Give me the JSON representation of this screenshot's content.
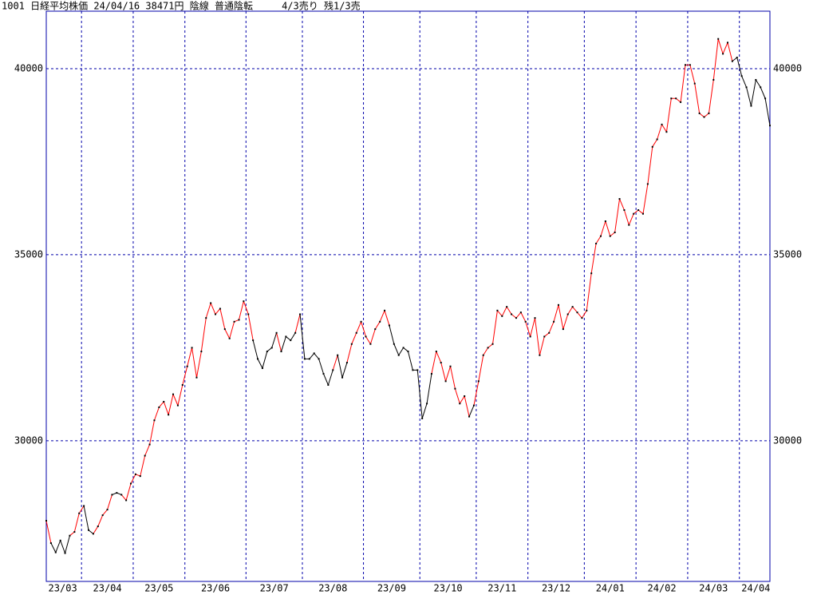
{
  "chart_data": {
    "type": "line",
    "title": "1001 日経平均株価 24/04/16 38471円 陰線 普通陰転     4/3売り 残1/3売",
    "x": [
      "23/03",
      "23/03",
      "23/03",
      "23/03",
      "23/03",
      "23/03",
      "23/03",
      "23/03",
      "23/04",
      "23/04",
      "23/04",
      "23/04",
      "23/04",
      "23/04",
      "23/04",
      "23/04",
      "23/04",
      "23/04",
      "23/04",
      "23/05",
      "23/05",
      "23/05",
      "23/05",
      "23/05",
      "23/05",
      "23/05",
      "23/05",
      "23/05",
      "23/05",
      "23/05",
      "23/06",
      "23/06",
      "23/06",
      "23/06",
      "23/06",
      "23/06",
      "23/06",
      "23/06",
      "23/06",
      "23/06",
      "23/06",
      "23/06",
      "23/06",
      "23/07",
      "23/07",
      "23/07",
      "23/07",
      "23/07",
      "23/07",
      "23/07",
      "23/07",
      "23/07",
      "23/07",
      "23/07",
      "23/07",
      "23/08",
      "23/08",
      "23/08",
      "23/08",
      "23/08",
      "23/08",
      "23/08",
      "23/08",
      "23/08",
      "23/08",
      "23/08",
      "23/08",
      "23/08",
      "23/09",
      "23/09",
      "23/09",
      "23/09",
      "23/09",
      "23/09",
      "23/09",
      "23/09",
      "23/09",
      "23/09",
      "23/09",
      "23/09",
      "23/10",
      "23/10",
      "23/10",
      "23/10",
      "23/10",
      "23/10",
      "23/10",
      "23/10",
      "23/10",
      "23/10",
      "23/10",
      "23/10",
      "23/11",
      "23/11",
      "23/11",
      "23/11",
      "23/11",
      "23/11",
      "23/11",
      "23/11",
      "23/11",
      "23/11",
      "23/11",
      "23/12",
      "23/12",
      "23/12",
      "23/12",
      "23/12",
      "23/12",
      "23/12",
      "23/12",
      "23/12",
      "23/12",
      "23/12",
      "23/12",
      "24/01",
      "24/01",
      "24/01",
      "24/01",
      "24/01",
      "24/01",
      "24/01",
      "24/01",
      "24/01",
      "24/01",
      "24/01",
      "24/02",
      "24/02",
      "24/02",
      "24/02",
      "24/02",
      "24/02",
      "24/02",
      "24/02",
      "24/02",
      "24/02",
      "24/02",
      "24/03",
      "24/03",
      "24/03",
      "24/03",
      "24/03",
      "24/03",
      "24/03",
      "24/03",
      "24/03",
      "24/03",
      "24/03",
      "24/04",
      "24/04",
      "24/04",
      "24/04",
      "24/04",
      "24/04",
      "24/04"
    ],
    "values": [
      27850,
      27250,
      27000,
      27320,
      26980,
      27450,
      27550,
      28050,
      28250,
      27600,
      27500,
      27700,
      28000,
      28150,
      28550,
      28600,
      28550,
      28400,
      28850,
      29100,
      29050,
      29600,
      29900,
      30550,
      30900,
      31050,
      30700,
      31250,
      30950,
      31500,
      32000,
      32500,
      31700,
      32400,
      33300,
      33700,
      33400,
      33550,
      33000,
      32750,
      33200,
      33250,
      33750,
      33400,
      32700,
      32200,
      31950,
      32400,
      32500,
      32900,
      32400,
      32800,
      32700,
      32900,
      33400,
      32200,
      32200,
      32350,
      32200,
      31800,
      31500,
      31900,
      32300,
      31700,
      32100,
      32600,
      32900,
      33200,
      32800,
      32600,
      33000,
      33200,
      33500,
      33100,
      32600,
      32300,
      32500,
      32400,
      31900,
      31900,
      30600,
      31000,
      31800,
      32400,
      32100,
      31600,
      32000,
      31400,
      31000,
      31200,
      30650,
      30950,
      31600,
      32300,
      32500,
      32600,
      33500,
      33350,
      33600,
      33400,
      33300,
      33450,
      33200,
      32800,
      33300,
      32300,
      32800,
      32900,
      33200,
      33650,
      33000,
      33400,
      33600,
      33450,
      33300,
      33500,
      34500,
      35300,
      35500,
      35900,
      35500,
      35600,
      36500,
      36200,
      35800,
      36100,
      36200,
      36100,
      36900,
      37900,
      38100,
      38500,
      38300,
      39200,
      39200,
      39100,
      40100,
      40100,
      39600,
      38800,
      38700,
      38800,
      39700,
      40800,
      40400,
      40700,
      40200,
      40300,
      39800,
      39500,
      39000,
      39700,
      39500,
      39200,
      38471
    ],
    "colors": [
      "#ff0000",
      "#ff0000",
      "#000000",
      "#000000",
      "#000000",
      "#000000",
      "#ff0000",
      "#ff0000",
      "#ff0000",
      "#000000",
      "#000000",
      "#ff0000",
      "#ff0000",
      "#ff0000",
      "#ff0000",
      "#000000",
      "#000000",
      "#ff0000",
      "#ff0000",
      "#ff0000",
      "#ff0000",
      "#ff0000",
      "#ff0000",
      "#ff0000",
      "#ff0000",
      "#ff0000",
      "#ff0000",
      "#ff0000",
      "#ff0000",
      "#ff0000",
      "#ff0000",
      "#ff0000",
      "#ff0000",
      "#ff0000",
      "#ff0000",
      "#ff0000",
      "#ff0000",
      "#ff0000",
      "#ff0000",
      "#ff0000",
      "#ff0000",
      "#ff0000",
      "#ff0000",
      "#ff0000",
      "#ff0000",
      "#000000",
      "#000000",
      "#000000",
      "#000000",
      "#000000",
      "#ff0000",
      "#000000",
      "#000000",
      "#000000",
      "#ff0000",
      "#000000",
      "#000000",
      "#000000",
      "#000000",
      "#000000",
      "#000000",
      "#000000",
      "#ff0000",
      "#000000",
      "#000000",
      "#ff0000",
      "#ff0000",
      "#ff0000",
      "#ff0000",
      "#ff0000",
      "#ff0000",
      "#ff0000",
      "#ff0000",
      "#ff0000",
      "#000000",
      "#000000",
      "#000000",
      "#000000",
      "#000000",
      "#000000",
      "#000000",
      "#000000",
      "#000000",
      "#ff0000",
      "#ff0000",
      "#ff0000",
      "#ff0000",
      "#ff0000",
      "#ff0000",
      "#ff0000",
      "#ff0000",
      "#000000",
      "#ff0000",
      "#ff0000",
      "#ff0000",
      "#ff0000",
      "#ff0000",
      "#ff0000",
      "#ff0000",
      "#ff0000",
      "#ff0000",
      "#ff0000",
      "#ff0000",
      "#ff0000",
      "#ff0000",
      "#ff0000",
      "#ff0000",
      "#ff0000",
      "#ff0000",
      "#ff0000",
      "#ff0000",
      "#ff0000",
      "#ff0000",
      "#ff0000",
      "#ff0000",
      "#ff0000",
      "#ff0000",
      "#ff0000",
      "#ff0000",
      "#ff0000",
      "#ff0000",
      "#ff0000",
      "#ff0000",
      "#ff0000",
      "#ff0000",
      "#ff0000",
      "#ff0000",
      "#ff0000",
      "#ff0000",
      "#ff0000",
      "#ff0000",
      "#ff0000",
      "#ff0000",
      "#ff0000",
      "#ff0000",
      "#ff0000",
      "#ff0000",
      "#ff0000",
      "#ff0000",
      "#ff0000",
      "#ff0000",
      "#ff0000",
      "#ff0000",
      "#ff0000",
      "#ff0000",
      "#ff0000",
      "#ff0000",
      "#000000",
      "#000000",
      "#000000",
      "#000000",
      "#000000",
      "#000000",
      "#000000",
      "#000000"
    ],
    "marker_color": "#000000",
    "ylim": [
      26220,
      41545
    ],
    "yticks": [
      30000,
      35000,
      40000
    ],
    "grid": true,
    "grid_color": "#0000aa",
    "frame_color": "#0000aa"
  }
}
